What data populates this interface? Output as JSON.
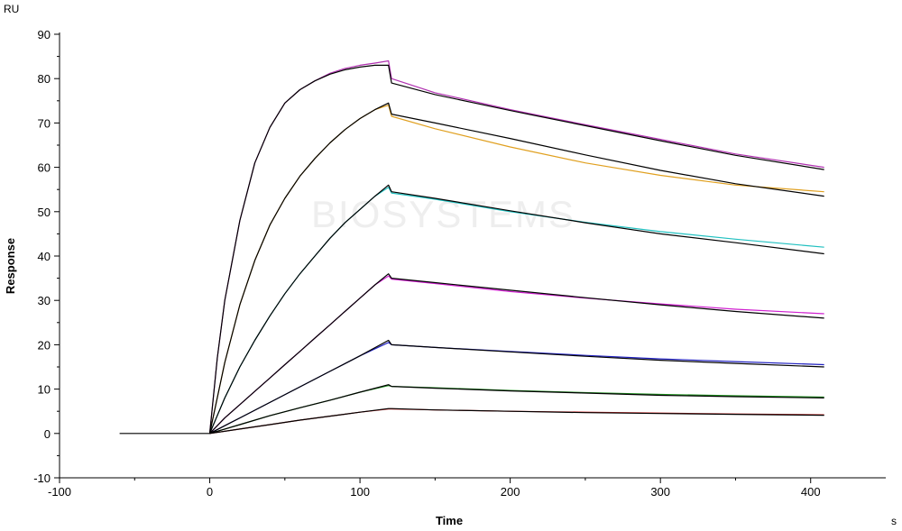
{
  "chart_data": {
    "type": "line",
    "title": "",
    "xlabel": "Time",
    "ylabel": "Response",
    "x_unit": "s",
    "y_unit": "RU",
    "xlim": [
      -100,
      450
    ],
    "ylim": [
      -10,
      90
    ],
    "x_ticks": [
      -100,
      0,
      100,
      200,
      300,
      400
    ],
    "y_ticks": [
      -10,
      0,
      10,
      20,
      30,
      40,
      50,
      60,
      70,
      80,
      90
    ],
    "grid": false,
    "legend": "none",
    "watermark": "BIOSYSTEMS",
    "baseline": {
      "x": [
        -60,
        0
      ],
      "y": [
        0,
        0
      ]
    },
    "series": [
      {
        "color": "#000000",
        "points": [
          [
            0,
            0
          ],
          [
            5,
            17
          ],
          [
            10,
            30
          ],
          [
            20,
            48
          ],
          [
            30,
            61
          ],
          [
            40,
            69
          ],
          [
            50,
            74.5
          ],
          [
            60,
            77.5
          ],
          [
            70,
            79.5
          ],
          [
            80,
            81
          ],
          [
            90,
            82
          ],
          [
            100,
            82.6
          ],
          [
            110,
            83
          ],
          [
            119,
            83
          ],
          [
            121,
            79
          ],
          [
            150,
            76.4
          ],
          [
            200,
            72.8
          ],
          [
            250,
            69.4
          ],
          [
            300,
            66
          ],
          [
            350,
            62.7
          ],
          [
            409,
            59.5
          ]
        ]
      },
      {
        "color": "#b030b0",
        "points": [
          [
            0,
            0
          ],
          [
            5,
            17
          ],
          [
            10,
            30
          ],
          [
            20,
            48
          ],
          [
            30,
            61
          ],
          [
            40,
            69
          ],
          [
            50,
            74.5
          ],
          [
            60,
            77.5
          ],
          [
            70,
            79.5
          ],
          [
            80,
            81.2
          ],
          [
            90,
            82.3
          ],
          [
            100,
            83
          ],
          [
            110,
            83.5
          ],
          [
            119,
            84
          ],
          [
            121,
            80
          ],
          [
            150,
            76.8
          ],
          [
            200,
            73
          ],
          [
            250,
            69.6
          ],
          [
            300,
            66.3
          ],
          [
            350,
            63
          ],
          [
            409,
            60
          ]
        ]
      },
      {
        "color": "#000000",
        "points": [
          [
            0,
            0
          ],
          [
            10,
            16
          ],
          [
            20,
            29
          ],
          [
            30,
            39
          ],
          [
            40,
            47
          ],
          [
            50,
            53
          ],
          [
            60,
            58
          ],
          [
            70,
            62
          ],
          [
            80,
            65.5
          ],
          [
            90,
            68.5
          ],
          [
            100,
            71
          ],
          [
            110,
            73
          ],
          [
            119,
            74.5
          ],
          [
            121,
            72
          ],
          [
            150,
            70
          ],
          [
            200,
            66.5
          ],
          [
            250,
            62.8
          ],
          [
            300,
            59.3
          ],
          [
            350,
            56.3
          ],
          [
            409,
            53.5
          ]
        ]
      },
      {
        "color": "#e0a020",
        "points": [
          [
            0,
            0
          ],
          [
            10,
            16
          ],
          [
            20,
            29
          ],
          [
            30,
            39
          ],
          [
            40,
            47
          ],
          [
            50,
            53
          ],
          [
            60,
            58
          ],
          [
            70,
            62
          ],
          [
            80,
            65.5
          ],
          [
            90,
            68.5
          ],
          [
            100,
            71
          ],
          [
            110,
            73
          ],
          [
            119,
            74
          ],
          [
            121,
            71.5
          ],
          [
            150,
            68.7
          ],
          [
            200,
            64.6
          ],
          [
            250,
            61
          ],
          [
            300,
            58.2
          ],
          [
            350,
            56
          ],
          [
            409,
            54.5
          ]
        ]
      },
      {
        "color": "#000000",
        "points": [
          [
            0,
            0
          ],
          [
            10,
            8
          ],
          [
            20,
            15
          ],
          [
            30,
            21
          ],
          [
            40,
            26.5
          ],
          [
            50,
            31.5
          ],
          [
            60,
            36
          ],
          [
            70,
            40
          ],
          [
            80,
            44
          ],
          [
            90,
            47.5
          ],
          [
            100,
            50.5
          ],
          [
            110,
            53.5
          ],
          [
            119,
            56
          ],
          [
            121,
            54.5
          ],
          [
            150,
            53
          ],
          [
            200,
            50.2
          ],
          [
            250,
            47.5
          ],
          [
            300,
            45
          ],
          [
            350,
            43
          ],
          [
            409,
            40.5
          ]
        ]
      },
      {
        "color": "#20c0c0",
        "points": [
          [
            0,
            0
          ],
          [
            10,
            8
          ],
          [
            20,
            15
          ],
          [
            30,
            21
          ],
          [
            40,
            26.5
          ],
          [
            50,
            31.5
          ],
          [
            60,
            36
          ],
          [
            70,
            40
          ],
          [
            80,
            44
          ],
          [
            90,
            47.5
          ],
          [
            100,
            50.5
          ],
          [
            110,
            53.5
          ],
          [
            119,
            55.5
          ],
          [
            121,
            54.2
          ],
          [
            150,
            52.8
          ],
          [
            200,
            50
          ],
          [
            250,
            47.6
          ],
          [
            300,
            45.5
          ],
          [
            350,
            43.8
          ],
          [
            409,
            42
          ]
        ]
      },
      {
        "color": "#000000",
        "points": [
          [
            0,
            0
          ],
          [
            10,
            3.5
          ],
          [
            20,
            6.5
          ],
          [
            30,
            9.5
          ],
          [
            40,
            12.5
          ],
          [
            50,
            15.5
          ],
          [
            60,
            18.5
          ],
          [
            70,
            21.5
          ],
          [
            80,
            24.5
          ],
          [
            90,
            27.5
          ],
          [
            100,
            30.5
          ],
          [
            110,
            33.5
          ],
          [
            119,
            36
          ],
          [
            121,
            35
          ],
          [
            150,
            34
          ],
          [
            200,
            32.3
          ],
          [
            250,
            30.6
          ],
          [
            300,
            29
          ],
          [
            350,
            27.5
          ],
          [
            409,
            26
          ]
        ]
      },
      {
        "color": "#d020d0",
        "points": [
          [
            0,
            0
          ],
          [
            10,
            3.5
          ],
          [
            20,
            6.5
          ],
          [
            30,
            9.5
          ],
          [
            40,
            12.5
          ],
          [
            50,
            15.5
          ],
          [
            60,
            18.5
          ],
          [
            70,
            21.5
          ],
          [
            80,
            24.5
          ],
          [
            90,
            27.5
          ],
          [
            100,
            30.5
          ],
          [
            110,
            33.5
          ],
          [
            119,
            35.5
          ],
          [
            121,
            34.8
          ],
          [
            150,
            33.8
          ],
          [
            200,
            32
          ],
          [
            250,
            30.5
          ],
          [
            300,
            29.2
          ],
          [
            350,
            28
          ],
          [
            409,
            27
          ]
        ]
      },
      {
        "color": "#000000",
        "points": [
          [
            0,
            0
          ],
          [
            20,
            3.5
          ],
          [
            40,
            7
          ],
          [
            60,
            10.5
          ],
          [
            80,
            14
          ],
          [
            100,
            17.5
          ],
          [
            119,
            21
          ],
          [
            121,
            20
          ],
          [
            150,
            19.4
          ],
          [
            200,
            18.4
          ],
          [
            250,
            17.4
          ],
          [
            300,
            16.5
          ],
          [
            350,
            15.8
          ],
          [
            409,
            15
          ]
        ]
      },
      {
        "color": "#2020c0",
        "points": [
          [
            0,
            0
          ],
          [
            20,
            3.5
          ],
          [
            40,
            7
          ],
          [
            60,
            10.5
          ],
          [
            80,
            14
          ],
          [
            100,
            17.5
          ],
          [
            119,
            20.5
          ],
          [
            121,
            20
          ],
          [
            150,
            19.4
          ],
          [
            200,
            18.5
          ],
          [
            250,
            17.6
          ],
          [
            300,
            16.8
          ],
          [
            350,
            16.2
          ],
          [
            409,
            15.5
          ]
        ]
      },
      {
        "color": "#000000",
        "points": [
          [
            0,
            0
          ],
          [
            20,
            2
          ],
          [
            40,
            4
          ],
          [
            60,
            5.8
          ],
          [
            80,
            7.5
          ],
          [
            100,
            9.3
          ],
          [
            119,
            11
          ],
          [
            121,
            10.6
          ],
          [
            150,
            10.2
          ],
          [
            200,
            9.6
          ],
          [
            250,
            9.1
          ],
          [
            300,
            8.6
          ],
          [
            350,
            8.3
          ],
          [
            409,
            8
          ]
        ]
      },
      {
        "color": "#209020",
        "points": [
          [
            0,
            0
          ],
          [
            20,
            2
          ],
          [
            40,
            4
          ],
          [
            60,
            5.8
          ],
          [
            80,
            7.5
          ],
          [
            100,
            9.3
          ],
          [
            119,
            10.8
          ],
          [
            121,
            10.6
          ],
          [
            150,
            10.3
          ],
          [
            200,
            9.7
          ],
          [
            250,
            9.2
          ],
          [
            300,
            8.8
          ],
          [
            350,
            8.5
          ],
          [
            409,
            8.2
          ]
        ]
      },
      {
        "color": "#000000",
        "points": [
          [
            0,
            0
          ],
          [
            20,
            1
          ],
          [
            40,
            2
          ],
          [
            60,
            3
          ],
          [
            80,
            3.9
          ],
          [
            100,
            4.8
          ],
          [
            119,
            5.6
          ],
          [
            121,
            5.6
          ],
          [
            150,
            5.3
          ],
          [
            200,
            5
          ],
          [
            250,
            4.7
          ],
          [
            300,
            4.5
          ],
          [
            350,
            4.3
          ],
          [
            409,
            4.1
          ]
        ]
      },
      {
        "color": "#c02020",
        "points": [
          [
            0,
            0
          ],
          [
            20,
            1
          ],
          [
            40,
            2
          ],
          [
            60,
            3
          ],
          [
            80,
            3.9
          ],
          [
            100,
            4.8
          ],
          [
            119,
            5.5
          ],
          [
            121,
            5.5
          ],
          [
            150,
            5.3
          ],
          [
            200,
            5
          ],
          [
            250,
            4.8
          ],
          [
            300,
            4.6
          ],
          [
            350,
            4.4
          ],
          [
            409,
            4.2
          ]
        ]
      }
    ]
  }
}
